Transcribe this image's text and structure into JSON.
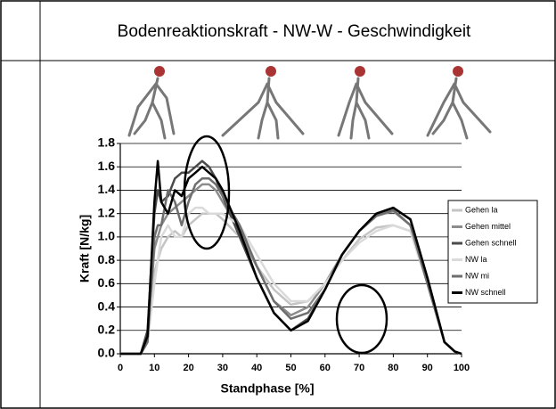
{
  "chart_data": {
    "type": "line",
    "title": "Bodenreaktionskraft  - NW-W - Geschwindigkeit",
    "y_label": "Kraft [N/kg]",
    "x_label": "Standphase [%]",
    "x": [
      0,
      6,
      8,
      10,
      11,
      12,
      14,
      16,
      18,
      20,
      22,
      24,
      26,
      28,
      30,
      35,
      40,
      45,
      50,
      55,
      60,
      65,
      70,
      75,
      80,
      85,
      90,
      95,
      98,
      100
    ],
    "series": [
      {
        "name": "Gehen la",
        "color": "#c4c4c4",
        "values": [
          0,
          0,
          0.1,
          0.7,
          0.8,
          0.9,
          1.0,
          1.05,
          1.0,
          1.1,
          1.15,
          1.2,
          1.2,
          1.2,
          1.15,
          1.0,
          0.75,
          0.55,
          0.42,
          0.45,
          0.6,
          0.8,
          0.98,
          1.08,
          1.1,
          1.05,
          0.6,
          0.1,
          0.02,
          0
        ]
      },
      {
        "name": "Gehen mittel",
        "color": "#8c8c8c",
        "values": [
          0,
          0,
          0.15,
          0.9,
          1.0,
          1.1,
          1.2,
          1.25,
          1.3,
          1.35,
          1.4,
          1.45,
          1.45,
          1.4,
          1.3,
          1.05,
          0.75,
          0.45,
          0.33,
          0.4,
          0.6,
          0.85,
          1.05,
          1.18,
          1.22,
          1.1,
          0.6,
          0.1,
          0.02,
          0
        ]
      },
      {
        "name": "Gehen schnell",
        "color": "#4a4a4a",
        "values": [
          0,
          0,
          0.2,
          1.2,
          1.4,
          1.3,
          1.35,
          1.5,
          1.55,
          1.55,
          1.6,
          1.65,
          1.6,
          1.5,
          1.35,
          1.0,
          0.65,
          0.35,
          0.2,
          0.3,
          0.55,
          0.85,
          1.05,
          1.18,
          1.25,
          1.15,
          0.65,
          0.1,
          0.02,
          0
        ]
      },
      {
        "name": "NW la",
        "color": "#dadada",
        "values": [
          0,
          0,
          0.1,
          0.6,
          0.8,
          1.0,
          1.1,
          1.0,
          1.0,
          1.2,
          1.25,
          1.25,
          1.2,
          1.2,
          1.2,
          1.1,
          0.85,
          0.6,
          0.45,
          0.45,
          0.6,
          0.8,
          0.95,
          1.05,
          1.1,
          1.05,
          0.6,
          0.1,
          0.02,
          0
        ]
      },
      {
        "name": "NW mi",
        "color": "#6e6e6e",
        "values": [
          0,
          0,
          0.1,
          1.0,
          1.1,
          1.1,
          1.4,
          1.3,
          1.1,
          1.3,
          1.45,
          1.5,
          1.5,
          1.45,
          1.35,
          1.1,
          0.75,
          0.45,
          0.3,
          0.35,
          0.55,
          0.85,
          1.05,
          1.18,
          1.23,
          1.1,
          0.6,
          0.1,
          0.02,
          0
        ]
      },
      {
        "name": "NW schnell",
        "color": "#000000",
        "values": [
          0,
          0,
          0.15,
          1.3,
          1.65,
          1.3,
          1.2,
          1.4,
          1.35,
          1.5,
          1.55,
          1.6,
          1.55,
          1.5,
          1.4,
          1.05,
          0.65,
          0.35,
          0.2,
          0.28,
          0.55,
          0.85,
          1.05,
          1.2,
          1.25,
          1.15,
          0.65,
          0.1,
          0.02,
          0
        ]
      }
    ],
    "xlim": [
      0,
      100
    ],
    "xticks": [
      0,
      10,
      20,
      30,
      40,
      50,
      60,
      70,
      80,
      90,
      100
    ],
    "ylim": [
      0,
      1.8
    ],
    "yticks": [
      {
        "value": 0,
        "label": "0.0"
      },
      0.2,
      0.4,
      0.6,
      0.8,
      {
        "value": 1,
        "label": "1.0"
      },
      1.2,
      1.4,
      1.6,
      1.8
    ],
    "grid": true,
    "legend": "right"
  }
}
